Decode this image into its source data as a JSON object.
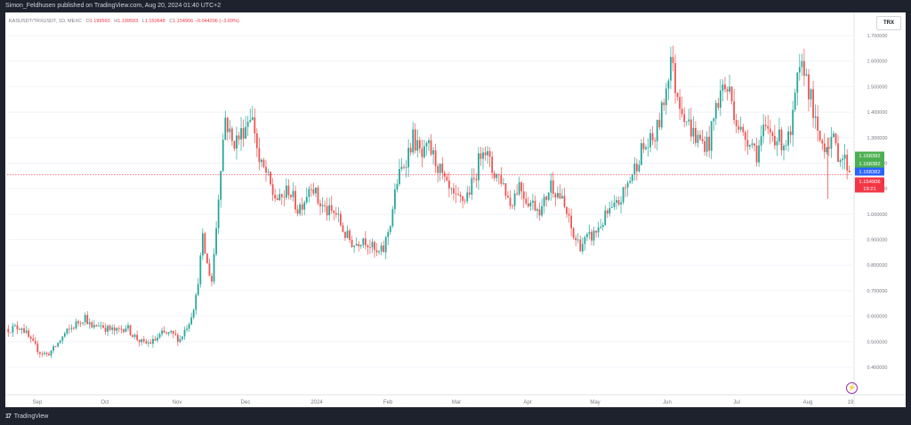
{
  "header": {
    "text": "Simon_Feldhusen published on TradingView.com, Aug 20, 2024 01:40 UTC+2"
  },
  "footer": {
    "logo": "17",
    "brand": "TradingView"
  },
  "symbol_button": "TRX",
  "legend": {
    "symbol": "KASUSDT/TRXUSDT, 1D, MEXC",
    "open_label": "O",
    "open": "1.199593",
    "high_label": "H",
    "high": "1.199593",
    "low_label": "L",
    "low": "1.150648",
    "close_label": "C",
    "close": "1.154906",
    "change": "−0.044206 (−3.69%)"
  },
  "colors": {
    "up": "#26a69a",
    "down": "#ef5350",
    "last_price": "#f23645",
    "green_tag": "#4caf50",
    "blue_tag": "#2962ff",
    "grid": "#f0f3fa"
  },
  "icons": {
    "alert": "lightning-icon"
  },
  "chart_data": {
    "type": "candlestick",
    "title": "",
    "xlabel": "",
    "ylabel": "",
    "ylim": [
      0.35,
      1.78
    ],
    "grid": true,
    "y_ticks": [
      "1.700000",
      "1.600000",
      "1.500000",
      "1.400000",
      "1.300000",
      "1.200000",
      "1.100000",
      "1.000000",
      "0.900000",
      "0.800000",
      "0.700000",
      "0.600000",
      "0.500000",
      "0.400000"
    ],
    "x_ticks": [
      "Sep",
      "Oct",
      "Nov",
      "Dec",
      "2024",
      "Feb",
      "Mar",
      "Apr",
      "May",
      "Jun",
      "Jul",
      "Aug",
      "19"
    ],
    "price_tags": [
      {
        "value": "1.168382",
        "color": "#4caf50",
        "level": 1.168382
      },
      {
        "value": "1.168382",
        "color": "#4caf50",
        "level": 1.168382
      },
      {
        "value": "1.168382",
        "color": "#2962ff",
        "level": 1.168382
      },
      {
        "value": "1.154906",
        "color": "#f23645",
        "level": 1.154906
      },
      {
        "value": "19:21",
        "color": "#f23645",
        "level": 1.154906
      }
    ],
    "last_price": 1.154906,
    "series": [
      {
        "path": [
          [
            0,
            0.55
          ],
          [
            6,
            0.56
          ],
          [
            10,
            0.5
          ],
          [
            14,
            0.46
          ],
          [
            17,
            0.45
          ],
          [
            20,
            0.47
          ],
          [
            25,
            0.53
          ],
          [
            30,
            0.57
          ],
          [
            34,
            0.6
          ],
          [
            37,
            0.55
          ],
          [
            40,
            0.57
          ],
          [
            44,
            0.55
          ],
          [
            48,
            0.54
          ],
          [
            52,
            0.56
          ],
          [
            56,
            0.52
          ],
          [
            60,
            0.49
          ],
          [
            64,
            0.5
          ],
          [
            68,
            0.53
          ],
          [
            72,
            0.53
          ],
          [
            76,
            0.51
          ],
          [
            80,
            0.58
          ],
          [
            83,
            0.67
          ],
          [
            86,
            0.9
          ],
          [
            88,
            0.8
          ],
          [
            90,
            0.74
          ],
          [
            92,
            0.95
          ],
          [
            94,
            1.2
          ],
          [
            96,
            1.38
          ],
          [
            99,
            1.28
          ],
          [
            102,
            1.3
          ],
          [
            105,
            1.35
          ],
          [
            107,
            1.4
          ],
          [
            109,
            1.33
          ],
          [
            111,
            1.2
          ],
          [
            114,
            1.16
          ],
          [
            117,
            1.08
          ],
          [
            120,
            1.05
          ],
          [
            124,
            1.1
          ],
          [
            128,
            1.02
          ],
          [
            131,
            1.06
          ],
          [
            134,
            1.13
          ],
          [
            137,
            1.05
          ],
          [
            141,
            1.01
          ],
          [
            145,
            1.0
          ],
          [
            149,
            0.92
          ],
          [
            153,
            0.88
          ],
          [
            157,
            0.91
          ],
          [
            160,
            0.88
          ],
          [
            163,
            0.84
          ],
          [
            166,
            0.86
          ],
          [
            169,
            0.97
          ],
          [
            172,
            1.13
          ],
          [
            176,
            1.22
          ],
          [
            179,
            1.3
          ],
          [
            183,
            1.22
          ],
          [
            186,
            1.26
          ],
          [
            190,
            1.19
          ],
          [
            194,
            1.1
          ],
          [
            198,
            1.05
          ],
          [
            202,
            1.06
          ],
          [
            206,
            1.13
          ],
          [
            210,
            1.28
          ],
          [
            214,
            1.17
          ],
          [
            218,
            1.14
          ],
          [
            222,
            1.04
          ],
          [
            226,
            1.12
          ],
          [
            229,
            1.06
          ],
          [
            232,
            1.04
          ],
          [
            236,
            1.02
          ],
          [
            240,
            1.12
          ],
          [
            244,
            1.07
          ],
          [
            247,
            1.0
          ],
          [
            250,
            0.91
          ],
          [
            253,
            0.88
          ],
          [
            256,
            0.9
          ],
          [
            259,
            0.92
          ],
          [
            262,
            0.96
          ],
          [
            265,
            1.0
          ],
          [
            268,
            1.02
          ],
          [
            271,
            1.06
          ],
          [
            274,
            1.12
          ],
          [
            277,
            1.18
          ],
          [
            280,
            1.25
          ],
          [
            283,
            1.27
          ],
          [
            286,
            1.3
          ],
          [
            289,
            1.4
          ],
          [
            291,
            1.5
          ],
          [
            293,
            1.62
          ],
          [
            295,
            1.5
          ],
          [
            298,
            1.42
          ],
          [
            301,
            1.35
          ],
          [
            304,
            1.3
          ],
          [
            307,
            1.28
          ],
          [
            310,
            1.28
          ],
          [
            313,
            1.42
          ],
          [
            316,
            1.5
          ],
          [
            319,
            1.48
          ],
          [
            322,
            1.37
          ],
          [
            325,
            1.3
          ],
          [
            328,
            1.3
          ],
          [
            331,
            1.24
          ],
          [
            334,
            1.32
          ],
          [
            337,
            1.32
          ],
          [
            340,
            1.3
          ],
          [
            343,
            1.28
          ],
          [
            346,
            1.3
          ],
          [
            349,
            1.52
          ],
          [
            352,
            1.58
          ],
          [
            355,
            1.45
          ],
          [
            358,
            1.3
          ],
          [
            361,
            1.27
          ],
          [
            364,
            1.3
          ],
          [
            367,
            1.24
          ],
          [
            370,
            1.21
          ],
          [
            373,
            1.16
          ]
        ],
        "dates_start": "2024-08-20",
        "n": 373
      }
    ]
  }
}
